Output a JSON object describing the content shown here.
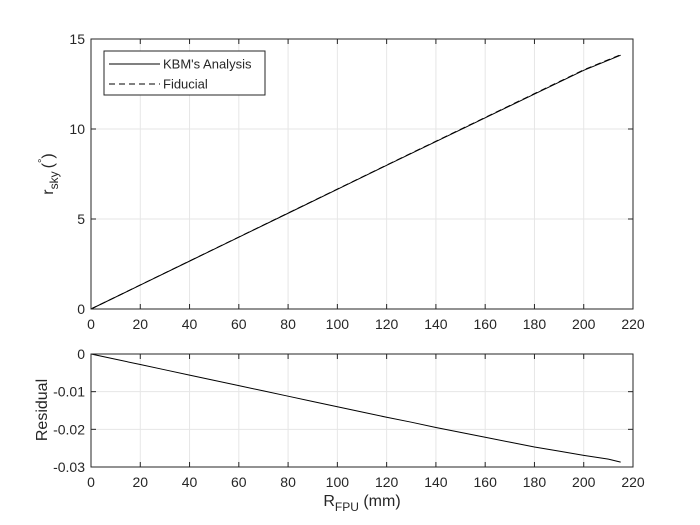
{
  "chart_data": [
    {
      "type": "line",
      "panel": "top",
      "xlim": [
        0,
        220
      ],
      "ylim": [
        0,
        15
      ],
      "xticks": [
        0,
        20,
        40,
        60,
        80,
        100,
        120,
        140,
        160,
        180,
        200,
        220
      ],
      "yticks": [
        0,
        5,
        10,
        15
      ],
      "xtick_labels": [
        "0",
        "20",
        "40",
        "60",
        "80",
        "100",
        "120",
        "140",
        "160",
        "180",
        "200",
        "220"
      ],
      "ytick_labels": [
        "0",
        "5",
        "10",
        "15"
      ],
      "ylabel_main": "r",
      "ylabel_sub": "sky",
      "ylabel_unit_open": "(",
      "ylabel_unit_sup": "°",
      "ylabel_unit_close": ")",
      "grid": true,
      "legend_position": "top-left",
      "series": [
        {
          "name": "KBM's Analysis",
          "style": "solid",
          "color": "#000000",
          "x": [
            0,
            20,
            40,
            60,
            80,
            100,
            120,
            140,
            160,
            180,
            200,
            215
          ],
          "y": [
            0,
            1.33,
            2.66,
            3.99,
            5.32,
            6.65,
            7.98,
            9.3,
            10.62,
            11.94,
            13.26,
            14.1
          ]
        },
        {
          "name": "Fiducial",
          "style": "dashed",
          "color": "#000000",
          "x": [
            0,
            20,
            40,
            60,
            80,
            100,
            120,
            140,
            160,
            180,
            200,
            215
          ],
          "y": [
            0,
            1.333,
            2.666,
            3.998,
            5.331,
            6.665,
            7.997,
            9.32,
            10.643,
            11.966,
            13.287,
            14.129
          ]
        }
      ]
    },
    {
      "type": "line",
      "panel": "bottom",
      "xlim": [
        0,
        220
      ],
      "ylim": [
        -0.03,
        0
      ],
      "xticks": [
        0,
        20,
        40,
        60,
        80,
        100,
        120,
        140,
        160,
        180,
        200,
        220
      ],
      "yticks": [
        0,
        -0.01,
        -0.02,
        -0.03
      ],
      "xtick_labels": [
        "0",
        "20",
        "40",
        "60",
        "80",
        "100",
        "120",
        "140",
        "160",
        "180",
        "200",
        "220"
      ],
      "ytick_labels": [
        "0",
        "-0.01",
        "-0.02",
        "-0.03"
      ],
      "ylabel": "Residual",
      "xlabel_main": "R",
      "xlabel_sub": "FPU",
      "xlabel_unit": " (mm)",
      "grid": true,
      "series": [
        {
          "style": "solid",
          "color": "#000000",
          "x": [
            0,
            10,
            20,
            30,
            40,
            50,
            60,
            70,
            80,
            90,
            100,
            110,
            120,
            130,
            140,
            150,
            160,
            170,
            180,
            190,
            200,
            210,
            215
          ],
          "y": [
            0,
            -0.0014,
            -0.0028,
            -0.0042,
            -0.0056,
            -0.007,
            -0.0084,
            -0.0098,
            -0.0112,
            -0.0126,
            -0.014,
            -0.0154,
            -0.0168,
            -0.0181,
            -0.0195,
            -0.0208,
            -0.0221,
            -0.0234,
            -0.0247,
            -0.0258,
            -0.0269,
            -0.0279,
            -0.0287
          ]
        }
      ]
    }
  ]
}
